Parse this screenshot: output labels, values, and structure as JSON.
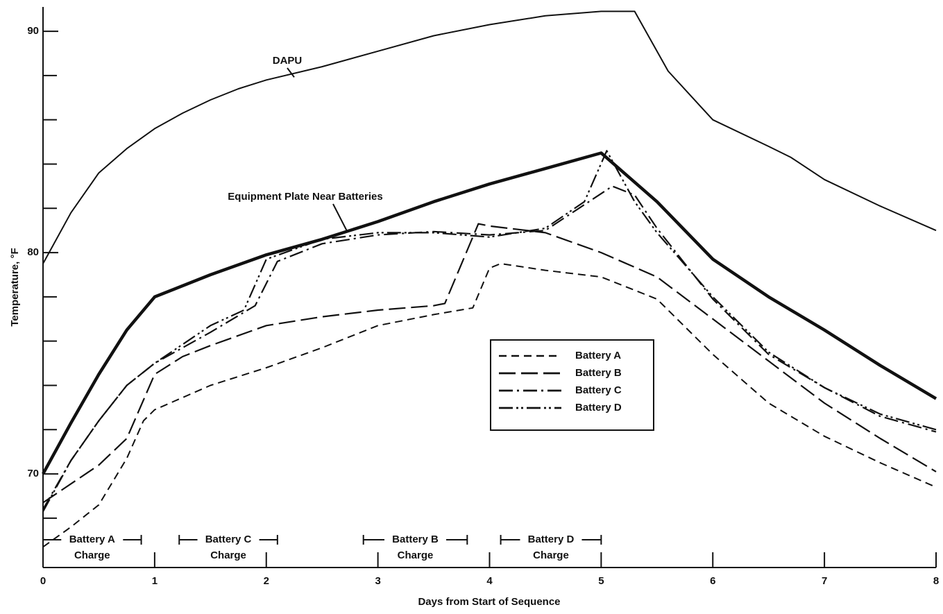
{
  "chart_data": {
    "type": "line",
    "xlabel": "Days from Start of Sequence",
    "ylabel": "Temperature, °F",
    "xlim": [
      0,
      8
    ],
    "xticks": [
      0,
      1,
      2,
      3,
      4,
      5,
      6,
      7,
      8
    ],
    "ylim": [
      65.77,
      91.1
    ],
    "yticks": [
      70,
      80,
      90
    ],
    "yminor_ticks": [
      68,
      72,
      74,
      76,
      78,
      82,
      84,
      86,
      88
    ],
    "legend": "center-right",
    "annotations": [
      "DAPU",
      "Equipment Plate Near Batteries"
    ],
    "charge_periods": [
      {
        "label": "Battery A",
        "sub": "Charge",
        "start": 0,
        "end": 0.88
      },
      {
        "label": "Battery C",
        "sub": "Charge",
        "start": 1.22,
        "end": 2.1
      },
      {
        "label": "Battery B",
        "sub": "Charge",
        "start": 2.87,
        "end": 3.8
      },
      {
        "label": "Battery D",
        "sub": "Charge",
        "start": 4.1,
        "end": 5.0
      }
    ],
    "series": [
      {
        "name": "Battery A",
        "color": "#111111",
        "style": "dash",
        "legend": true,
        "x": [
          0,
          0.25,
          0.5,
          0.75,
          0.9,
          1,
          1.5,
          2,
          2.5,
          3,
          3.5,
          3.85,
          4,
          4.1,
          4.5,
          5,
          5.5,
          6,
          6.5,
          7,
          7.5,
          8
        ],
        "values": [
          66.7,
          67.6,
          68.6,
          70.7,
          72.4,
          72.9,
          74.0,
          74.8,
          75.7,
          76.7,
          77.2,
          77.5,
          79.3,
          79.5,
          79.2,
          78.9,
          77.9,
          75.4,
          73.2,
          71.7,
          70.5,
          69.4
        ]
      },
      {
        "name": "Battery B",
        "color": "#111111",
        "style": "longdash",
        "legend": true,
        "x": [
          0,
          0.5,
          0.75,
          1,
          1.25,
          1.5,
          2,
          2.5,
          3,
          3.5,
          3.6,
          3.9,
          4,
          4.5,
          5,
          5.5,
          6,
          6.5,
          7,
          7.5,
          8
        ],
        "values": [
          68.7,
          70.4,
          71.6,
          74.5,
          75.3,
          75.8,
          76.7,
          77.1,
          77.4,
          77.6,
          77.7,
          81.3,
          81.2,
          80.9,
          80.0,
          78.9,
          77.0,
          75.1,
          73.2,
          71.6,
          70.1
        ]
      },
      {
        "name": "Battery C",
        "color": "#111111",
        "style": "dashdot",
        "legend": true,
        "x": [
          0,
          0.25,
          0.5,
          0.75,
          1,
          1.5,
          1.9,
          2.1,
          2.5,
          3,
          3.5,
          4,
          4.5,
          4.8,
          5.1,
          5.3,
          5.5,
          6,
          6.5,
          7,
          7.5,
          8
        ],
        "values": [
          68.4,
          70.6,
          72.4,
          74.0,
          75.0,
          76.4,
          77.6,
          79.6,
          80.4,
          80.8,
          80.95,
          80.8,
          81.0,
          82.0,
          83.0,
          82.6,
          81.1,
          77.9,
          75.4,
          73.9,
          72.6,
          71.9
        ]
      },
      {
        "name": "Battery D",
        "color": "#111111",
        "style": "dashdotdot",
        "legend": true,
        "x": [
          0,
          0.25,
          0.5,
          0.75,
          1,
          1.5,
          1.8,
          2,
          2.5,
          3,
          3.5,
          4,
          4.5,
          4.85,
          5.05,
          5.3,
          5.5,
          6,
          6.5,
          7,
          7.5,
          8
        ],
        "values": [
          68.3,
          70.6,
          72.4,
          74.0,
          75.0,
          76.7,
          77.4,
          79.7,
          80.6,
          80.9,
          80.9,
          80.7,
          81.1,
          82.3,
          84.6,
          82.3,
          80.9,
          78.0,
          75.5,
          73.9,
          72.7,
          72.0
        ]
      },
      {
        "name": "DAPU",
        "color": "#111111",
        "style": "thin",
        "legend": false,
        "x": [
          0,
          0.25,
          0.5,
          0.75,
          1,
          1.25,
          1.5,
          1.75,
          2,
          2.5,
          3,
          3.5,
          4,
          4.5,
          5,
          5.3,
          5.6,
          6,
          6.5,
          6.7,
          7,
          7.5,
          8
        ],
        "values": [
          79.5,
          81.8,
          83.6,
          84.7,
          85.6,
          86.3,
          86.9,
          87.4,
          87.8,
          88.4,
          89.1,
          89.8,
          90.3,
          90.7,
          90.9,
          90.9,
          88.2,
          86.0,
          84.8,
          84.3,
          83.3,
          82.1,
          81.0
        ]
      },
      {
        "name": "Equipment Plate Near Batteries",
        "color": "#111111",
        "style": "thick",
        "legend": false,
        "x": [
          0,
          0.25,
          0.5,
          0.75,
          1,
          1.5,
          2,
          2.5,
          3,
          3.5,
          4,
          4.5,
          5,
          5.5,
          6,
          6.5,
          7,
          7.5,
          8
        ],
        "values": [
          70.0,
          72.3,
          74.5,
          76.5,
          78.0,
          79.0,
          79.9,
          80.6,
          81.4,
          82.3,
          83.1,
          83.8,
          84.5,
          82.3,
          79.7,
          78.0,
          76.5,
          74.9,
          73.4
        ]
      }
    ]
  }
}
